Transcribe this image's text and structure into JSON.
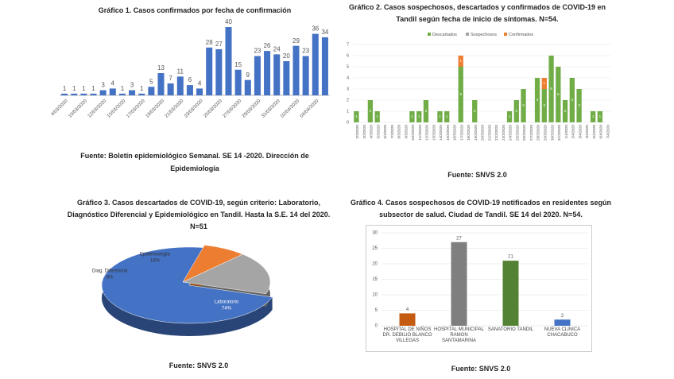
{
  "chart_data": [
    {
      "type": "bar",
      "title": "Gráfico 1. Casos confirmados por fecha de confirmación",
      "categories": [
        "4/03/2020",
        null,
        "10/03/2020",
        null,
        "12/03/2020",
        null,
        "15/03/2020",
        null,
        "17/03/2020",
        null,
        "19/03/2020",
        null,
        "21/03/2020",
        null,
        "23/03/2020",
        null,
        "25/03/2020",
        null,
        "27/03/2020",
        null,
        "29/03/2020",
        null,
        "31/03/2020",
        null,
        "02/04/2020",
        null,
        "04/04/2020",
        null
      ],
      "values": [
        1,
        1,
        1,
        1,
        3,
        4,
        1,
        3,
        1,
        5,
        13,
        7,
        11,
        6,
        4,
        28,
        27,
        40,
        15,
        9,
        23,
        26,
        24,
        20,
        29,
        23,
        36,
        34
      ],
      "color": "#4472c4",
      "source": "Fuente: Boletín epidemiológico Semanal. SE 14 -2020.  Dirección de Epidemiología"
    },
    {
      "type": "stacked_bar",
      "title": "Gráfico 2. Casos sospechosos, descartados y confirmados de COVID-19 en Tandil según fecha de inicio de síntomas. N=54.",
      "categories": [
        "2/3/2020",
        "3/3/2020",
        "4/3/2020",
        "5/3/2020",
        "6/3/2020",
        "7/3/2020",
        "8/3/2020",
        "9/3/2020",
        "10/3/2020",
        "11/3/2020",
        "12/3/2020",
        "13/3/2020",
        "14/3/2020",
        "15/3/2020",
        "16/3/2020",
        "17/3/2020",
        "18/3/2020",
        "19/3/2020",
        "20/3/2020",
        "21/3/2020",
        "22/3/2020",
        "23/3/2020",
        "24/3/2020",
        "25/3/2020",
        "26/3/2020",
        "27/3/2020",
        "28/3/2020",
        "29/3/2020",
        "30/3/2020",
        "31/3/2020",
        "1/4/2020",
        "2/4/2020",
        "3/4/2020",
        "4/4/2020",
        "5/4/2020",
        "6/4/2020",
        "7/4/2020"
      ],
      "series": [
        {
          "name": "Descartados",
          "color": "#70ad47",
          "values": [
            1,
            0,
            2,
            1,
            0,
            0,
            0,
            0,
            1,
            1,
            2,
            0,
            1,
            1,
            0,
            5,
            0,
            2,
            0,
            0,
            0,
            0,
            1,
            2,
            3,
            0,
            4,
            3,
            6,
            5,
            2,
            4,
            3,
            0,
            1,
            1,
            0
          ]
        },
        {
          "name": "Sospechosos",
          "color": "#a5a5a5",
          "values": [
            0,
            0,
            0,
            0,
            0,
            0,
            0,
            0,
            0,
            0,
            0,
            0,
            0,
            0,
            0,
            0,
            0,
            0,
            0,
            0,
            0,
            0,
            0,
            0,
            0,
            0,
            0,
            0,
            0,
            0,
            0,
            0,
            0,
            0,
            0,
            0,
            0
          ]
        },
        {
          "name": "Confirmados",
          "color": "#ed7d31",
          "values": [
            0,
            0,
            0,
            0,
            0,
            0,
            0,
            0,
            0,
            0,
            0,
            0,
            0,
            0,
            0,
            1,
            0,
            0,
            0,
            0,
            0,
            0,
            0,
            0,
            0,
            0,
            0,
            1,
            0,
            0,
            0,
            0,
            0,
            0,
            0,
            0,
            0
          ]
        }
      ],
      "ylim": [
        0,
        7
      ],
      "yticks": [
        0,
        1,
        2,
        3,
        4,
        5,
        6,
        7
      ],
      "grid": true,
      "legend": "top",
      "source": "Fuente: SNVS 2.0"
    },
    {
      "type": "pie",
      "title": "Gráfico 3. Casos descartados de COVID-19, según criterio: Laboratorio, Diagnóstico Diferencial y Epidemiológico en Tandil. Hasta la S.E. 14 del 2020. N=51",
      "categories": [
        "Laboratorio",
        "Diag. Diferencial",
        "Epidemiología"
      ],
      "values": [
        74,
        8,
        18
      ],
      "value_labels": [
        "74%",
        "8%",
        "18%"
      ],
      "colors": [
        "#4472c4",
        "#ed7d31",
        "#a5a5a5"
      ],
      "source": "Fuente: SNVS 2.0"
    },
    {
      "type": "bar",
      "title": "Gráfico 4. Casos sospechosos de COVID-19 notificados en residentes según subsector de salud. Ciudad de Tandil. SE 14 del 2020. N=54.",
      "categories": [
        "HOSPITAL DE NIÑOS DR. DEBILIO BLANCO VILLEGAS",
        "HOSPITAL MUNICIPAL RAMON SANTAMARINA",
        "SANATORIO TANDIL",
        "NUEVA CLINICA CHACABUCO"
      ],
      "values": [
        4,
        27,
        21,
        2
      ],
      "colors": [
        "#c55a11",
        "#7f7f7f",
        "#548235",
        "#4472c4"
      ],
      "ylim": [
        0,
        30
      ],
      "yticks": [
        0,
        5,
        10,
        15,
        20,
        25,
        30
      ],
      "grid": true,
      "source": "Fuente: SNVS 2.0"
    }
  ]
}
